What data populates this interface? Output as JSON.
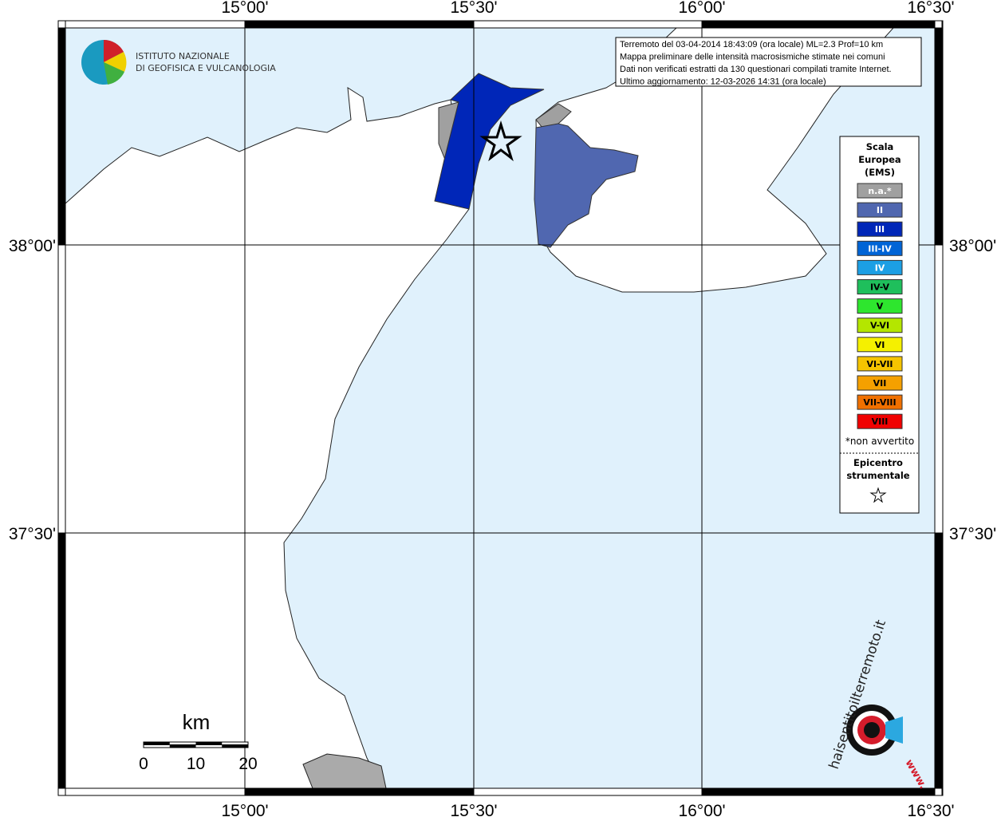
{
  "map": {
    "lon_labels": [
      "15°00'",
      "15°30'",
      "16°00'",
      "16°30'"
    ],
    "lat_labels": [
      "38°00'",
      "37°30'"
    ],
    "logo": {
      "line1": "ISTITUTO NAZIONALE",
      "line2": "DI GEOFISICA E VULCANOLOGIA"
    },
    "info": {
      "lines": [
        "Terremoto del 03-04-2014 18:43:09 (ora locale) ML=2.3 Prof=10 km",
        "Mappa preliminare delle intensità macrosismiche stimate nei comuni",
        "Dati non verificati estratti da 130 questionari compilati tramite Internet.",
        "Ultimo aggiornamento: 12-03-2026 14:31 (ora locale)"
      ]
    },
    "legend": {
      "title": [
        "Scala",
        "Europea",
        "(EMS)"
      ],
      "items": [
        {
          "label": "n.a.*",
          "color": "#a0a0a0"
        },
        {
          "label": "II",
          "color": "#5067b0"
        },
        {
          "label": "III",
          "color": "#0026b8"
        },
        {
          "label": "III-IV",
          "color": "#0064d6"
        },
        {
          "label": "IV",
          "color": "#1c9fe4"
        },
        {
          "label": "IV-V",
          "color": "#1fbf5c"
        },
        {
          "label": "V",
          "color": "#2ee62e"
        },
        {
          "label": "V-VI",
          "color": "#b4e600"
        },
        {
          "label": "VI",
          "color": "#f5f000"
        },
        {
          "label": "VI-VII",
          "color": "#f5c400"
        },
        {
          "label": "VII",
          "color": "#f5a000"
        },
        {
          "label": "VII-VIII",
          "color": "#f07000"
        },
        {
          "label": "VIII",
          "color": "#f00000"
        }
      ],
      "note": "*non avvertito",
      "epicenter": [
        "Epicentro",
        "strumentale"
      ]
    },
    "scale": {
      "unit": "km",
      "ticks": [
        "0",
        "10",
        "20"
      ]
    },
    "site_logo": {
      "text": "haisentitoilterremoto.it",
      "prefix": "www."
    }
  }
}
